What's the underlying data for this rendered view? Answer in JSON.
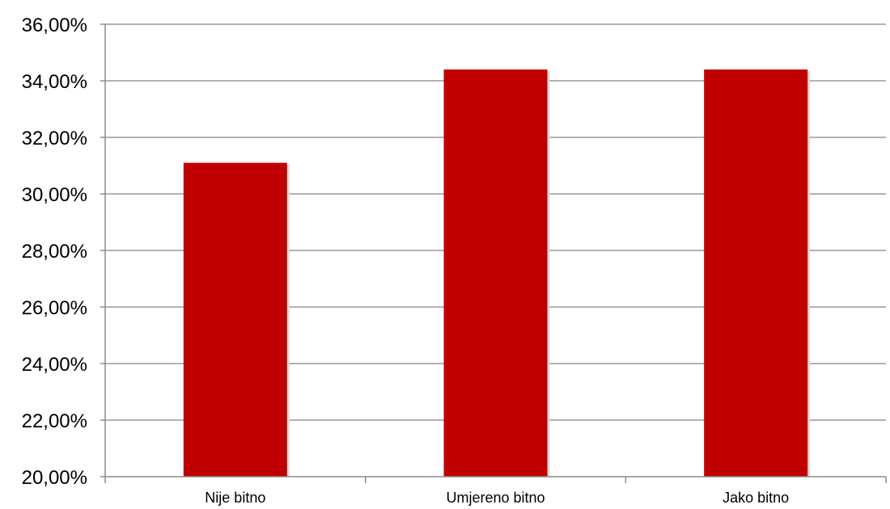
{
  "chart_data": {
    "type": "bar",
    "categories": [
      "Nije bitno",
      "Umjereno bitno",
      "Jako bitno"
    ],
    "values": [
      31.1,
      34.4,
      34.4
    ],
    "ylim": [
      20,
      36
    ],
    "yticks": [
      "20,00%",
      "22,00%",
      "24,00%",
      "26,00%",
      "28,00%",
      "30,00%",
      "32,00%",
      "34,00%",
      "36,00%"
    ],
    "grid": true,
    "legend": "none",
    "title": "",
    "xlabel": "",
    "ylabel": "",
    "colors": {
      "bar": "#C00000",
      "grid": "#9a9a9a",
      "axis": "#8c8c8c"
    }
  }
}
